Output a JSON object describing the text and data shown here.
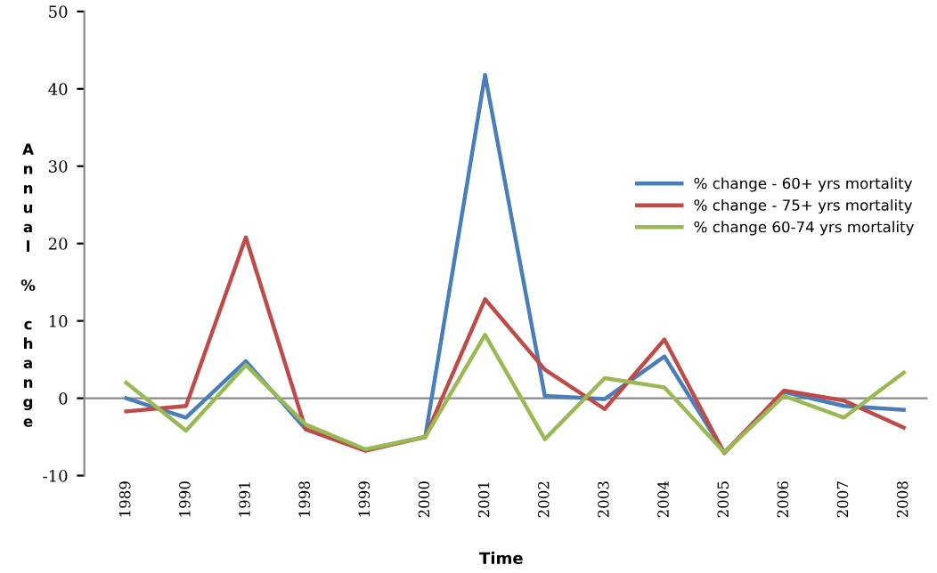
{
  "chart_data": {
    "type": "line",
    "xlabel": "Time",
    "ylabel": "Annual % change",
    "categories": [
      "1989",
      "1990",
      "1991",
      "1998",
      "1999",
      "2000",
      "2001",
      "2002",
      "2003",
      "2004",
      "2005",
      "2006",
      "2007",
      "2008"
    ],
    "series": [
      {
        "name": "% change - 60+ yrs mortality",
        "color": "#4a7ebb",
        "values": [
          0,
          -2.5,
          4.8,
          -4,
          -6.7,
          -5,
          41.8,
          0.3,
          -0.1,
          5.4,
          -7,
          0.8,
          -1,
          -1.5
        ]
      },
      {
        "name": "% change - 75+ yrs mortality",
        "color": "#be4b48",
        "values": [
          -1.7,
          -1,
          20.8,
          -4,
          -6.8,
          -5,
          12.8,
          3.7,
          -1.4,
          7.6,
          -7.1,
          1,
          -0.3,
          -3.8
        ]
      },
      {
        "name": "% change 60-74 yrs mortality",
        "color": "#98b954",
        "values": [
          2,
          -4.2,
          4.3,
          -3.4,
          -6.6,
          -5,
          8.2,
          -5.3,
          2.6,
          1.4,
          -7,
          0.3,
          -2.5,
          3.3
        ]
      }
    ],
    "ylim": [
      -10,
      50
    ],
    "yticks": [
      -10,
      0,
      10,
      20,
      30,
      40,
      50
    ],
    "grid": false,
    "ref_lines": [
      {
        "axis": "y",
        "value": 0,
        "color": "#888888"
      }
    ],
    "legend": "right",
    "marker": "none",
    "line_style": "solid"
  }
}
